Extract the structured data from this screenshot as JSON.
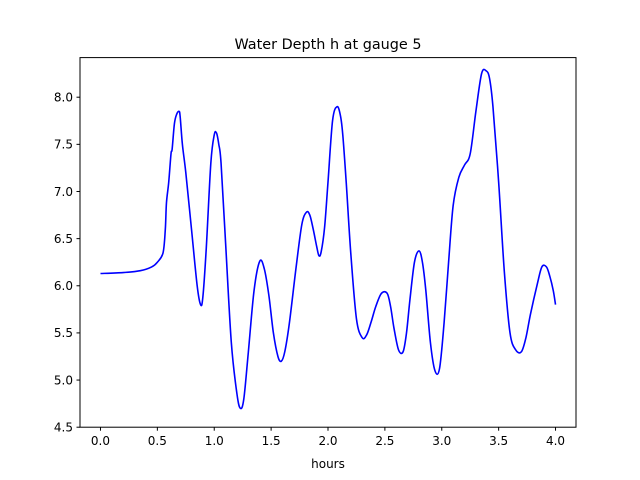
{
  "chart_data": {
    "type": "line",
    "title": "Water Depth h at gauge 5",
    "xlabel": "hours",
    "ylabel": "",
    "xlim": [
      -0.18,
      4.18
    ],
    "ylim": [
      4.5,
      8.42
    ],
    "xticks": [
      0.0,
      0.5,
      1.0,
      1.5,
      2.0,
      2.5,
      3.0,
      3.5,
      4.0
    ],
    "xtick_labels": [
      "0.0",
      "0.5",
      "1.0",
      "1.5",
      "2.0",
      "2.5",
      "3.0",
      "3.5",
      "4.0"
    ],
    "yticks": [
      4.5,
      5.0,
      5.5,
      6.0,
      6.5,
      7.0,
      7.5,
      8.0
    ],
    "ytick_labels": [
      "4.5",
      "5.0",
      "5.5",
      "6.0",
      "6.5",
      "7.0",
      "7.5",
      "8.0"
    ],
    "grid": false,
    "legend": "none",
    "series": [
      {
        "color": "#0000ff",
        "x": [
          0.0,
          0.2,
          0.35,
          0.45,
          0.5,
          0.55,
          0.57,
          0.58,
          0.6,
          0.62,
          0.63,
          0.65,
          0.67,
          0.69,
          0.7,
          0.72,
          0.75,
          0.8,
          0.85,
          0.88,
          0.9,
          0.93,
          0.97,
          1.0,
          1.02,
          1.04,
          1.06,
          1.1,
          1.15,
          1.2,
          1.23,
          1.26,
          1.3,
          1.35,
          1.4,
          1.44,
          1.48,
          1.52,
          1.56,
          1.59,
          1.62,
          1.66,
          1.72,
          1.77,
          1.81,
          1.84,
          1.87,
          1.9,
          1.92,
          1.94,
          1.97,
          2.0,
          2.04,
          2.08,
          2.11,
          2.13,
          2.16,
          2.2,
          2.25,
          2.3,
          2.34,
          2.38,
          2.42,
          2.47,
          2.52,
          2.55,
          2.58,
          2.62,
          2.66,
          2.69,
          2.72,
          2.76,
          2.8,
          2.83,
          2.86,
          2.9,
          2.94,
          2.98,
          3.02,
          3.06,
          3.1,
          3.15,
          3.2,
          3.25,
          3.3,
          3.35,
          3.39,
          3.42,
          3.45,
          3.5,
          3.55,
          3.6,
          3.65,
          3.7,
          3.74,
          3.78,
          3.84,
          3.88,
          3.92,
          3.95,
          3.98,
          4.0
        ],
        "y": [
          6.13,
          6.14,
          6.16,
          6.2,
          6.25,
          6.35,
          6.6,
          6.88,
          7.1,
          7.4,
          7.45,
          7.72,
          7.82,
          7.85,
          7.8,
          7.5,
          7.2,
          6.6,
          6.0,
          5.8,
          5.88,
          6.4,
          7.3,
          7.6,
          7.62,
          7.5,
          7.3,
          6.45,
          5.4,
          4.85,
          4.7,
          4.8,
          5.3,
          5.95,
          6.26,
          6.18,
          5.9,
          5.5,
          5.25,
          5.2,
          5.3,
          5.6,
          6.2,
          6.65,
          6.78,
          6.75,
          6.6,
          6.42,
          6.32,
          6.36,
          6.62,
          7.1,
          7.75,
          7.9,
          7.8,
          7.6,
          7.1,
          6.35,
          5.65,
          5.45,
          5.48,
          5.62,
          5.78,
          5.92,
          5.92,
          5.78,
          5.55,
          5.32,
          5.3,
          5.5,
          5.85,
          6.25,
          6.37,
          6.25,
          5.95,
          5.4,
          5.1,
          5.12,
          5.6,
          6.25,
          6.85,
          7.15,
          7.28,
          7.4,
          7.85,
          8.25,
          8.28,
          8.2,
          7.9,
          7.1,
          6.15,
          5.5,
          5.32,
          5.3,
          5.45,
          5.7,
          6.02,
          6.2,
          6.2,
          6.1,
          5.95,
          5.8
        ]
      }
    ]
  }
}
